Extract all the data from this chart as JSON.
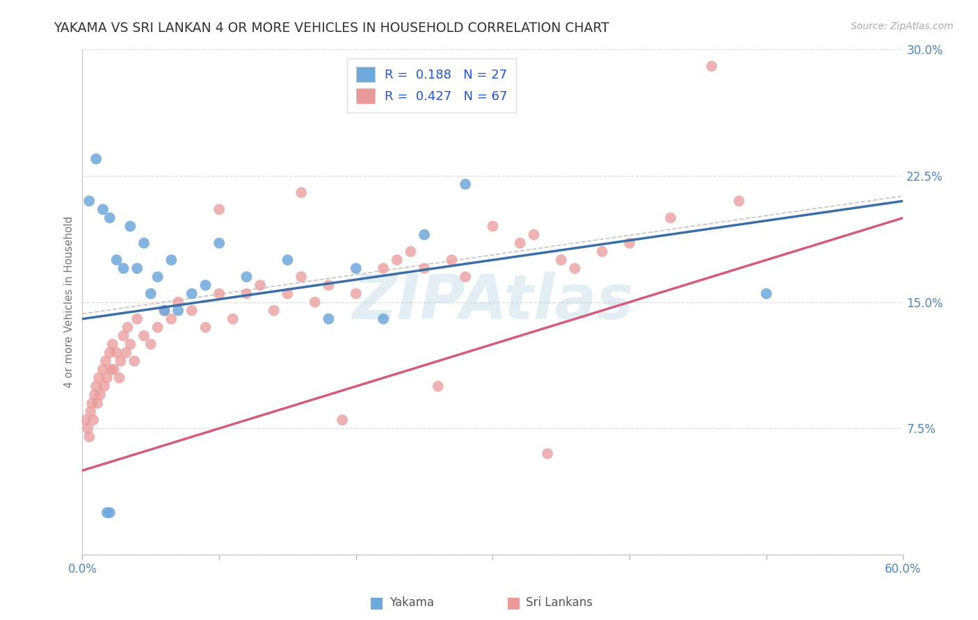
{
  "title": "YAKAMA VS SRI LANKAN 4 OR MORE VEHICLES IN HOUSEHOLD CORRELATION CHART",
  "source": "Source: ZipAtlas.com",
  "ylabel": "4 or more Vehicles in Household",
  "xmin": 0.0,
  "xmax": 60.0,
  "ymin": 0.0,
  "ymax": 30.0,
  "xticks": [
    0.0,
    10.0,
    20.0,
    30.0,
    40.0,
    50.0,
    60.0
  ],
  "yticks": [
    0.0,
    7.5,
    15.0,
    22.5,
    30.0
  ],
  "xtick_labels": [
    "0.0%",
    "",
    "",
    "",
    "",
    "",
    "60.0%"
  ],
  "ytick_labels": [
    "",
    "7.5%",
    "15.0%",
    "22.5%",
    "30.0%"
  ],
  "yakama_color": "#6fa8dc",
  "srilankan_color": "#ea9999",
  "yakama_line_color": "#3a6ea8",
  "srilankan_line_color": "#d45b7a",
  "legend_r_yakama": "0.188",
  "legend_n_yakama": "27",
  "legend_r_srilankan": "0.427",
  "legend_n_srilankan": "67",
  "tick_color": "#4a86c8",
  "title_color": "#333333",
  "axis_label_color": "#777777",
  "grid_color": "#dddddd",
  "watermark_text": "ZIPAtlas",
  "watermark_color": "#b0cce0",
  "source_color": "#aaaaaa",
  "legend_label_yakama": "Yakama",
  "legend_label_srilankan": "Sri Lankans",
  "yakama_x": [
    0.5,
    1.0,
    1.5,
    2.0,
    2.5,
    3.0,
    3.5,
    4.0,
    4.5,
    5.0,
    5.5,
    6.0,
    6.5,
    7.0,
    8.0,
    9.0,
    10.0,
    12.0,
    15.0,
    18.0,
    20.0,
    22.0,
    25.0,
    28.0,
    50.0,
    2.0,
    1.8
  ],
  "yakama_y": [
    21.0,
    23.5,
    20.5,
    20.0,
    17.5,
    17.0,
    19.5,
    17.0,
    18.5,
    15.5,
    16.5,
    14.5,
    17.5,
    14.5,
    15.5,
    16.0,
    18.5,
    16.5,
    17.5,
    14.0,
    17.0,
    14.0,
    19.0,
    22.0,
    15.5,
    2.5,
    2.5
  ],
  "srilankan_x": [
    0.2,
    0.4,
    0.5,
    0.6,
    0.7,
    0.8,
    0.9,
    1.0,
    1.1,
    1.2,
    1.3,
    1.5,
    1.6,
    1.7,
    1.8,
    2.0,
    2.1,
    2.2,
    2.3,
    2.5,
    2.7,
    2.8,
    3.0,
    3.2,
    3.3,
    3.5,
    3.8,
    4.0,
    4.5,
    5.0,
    5.5,
    6.0,
    6.5,
    7.0,
    8.0,
    9.0,
    10.0,
    11.0,
    12.0,
    13.0,
    14.0,
    15.0,
    16.0,
    17.0,
    18.0,
    20.0,
    22.0,
    23.0,
    24.0,
    25.0,
    27.0,
    28.0,
    30.0,
    32.0,
    33.0,
    35.0,
    36.0,
    38.0,
    40.0,
    43.0,
    46.0,
    48.0,
    34.0,
    19.0,
    26.0,
    16.0,
    10.0
  ],
  "srilankan_y": [
    8.0,
    7.5,
    7.0,
    8.5,
    9.0,
    8.0,
    9.5,
    10.0,
    9.0,
    10.5,
    9.5,
    11.0,
    10.0,
    11.5,
    10.5,
    12.0,
    11.0,
    12.5,
    11.0,
    12.0,
    10.5,
    11.5,
    13.0,
    12.0,
    13.5,
    12.5,
    11.5,
    14.0,
    13.0,
    12.5,
    13.5,
    14.5,
    14.0,
    15.0,
    14.5,
    13.5,
    15.5,
    14.0,
    15.5,
    16.0,
    14.5,
    15.5,
    16.5,
    15.0,
    16.0,
    15.5,
    17.0,
    17.5,
    18.0,
    17.0,
    17.5,
    16.5,
    19.5,
    18.5,
    19.0,
    17.5,
    17.0,
    18.0,
    18.5,
    20.0,
    29.0,
    21.0,
    6.0,
    8.0,
    10.0,
    21.5,
    20.5
  ]
}
